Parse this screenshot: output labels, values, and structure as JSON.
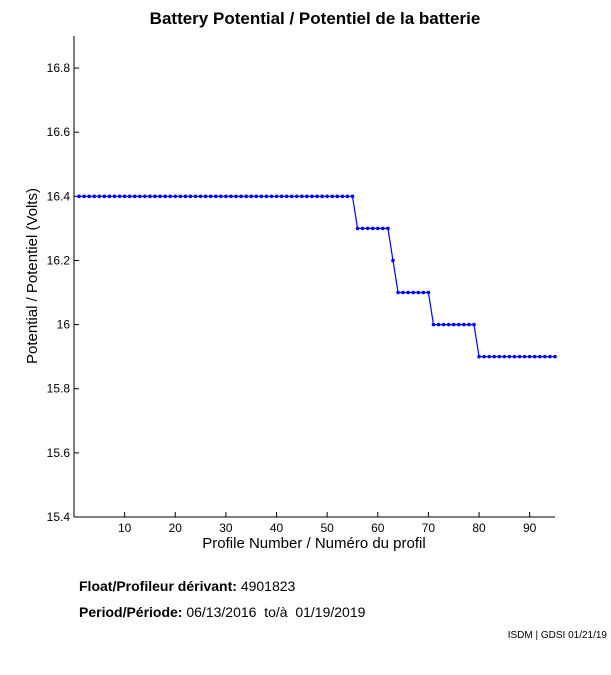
{
  "chart_data": {
    "type": "line",
    "title": "Battery Potential / Potentiel de la batterie",
    "xlabel": "Profile Number / Numéro du profil",
    "ylabel": "Potential / Potentiel (Volts)",
    "xlim": [
      0,
      95
    ],
    "ylim": [
      15.4,
      16.9
    ],
    "xticks": [
      10,
      20,
      30,
      40,
      50,
      60,
      70,
      80,
      90
    ],
    "yticks": [
      15.4,
      15.6,
      15.8,
      16,
      16.2,
      16.4,
      16.6,
      16.8
    ],
    "ytick_labels": [
      "15.4",
      "15.6",
      "15.8",
      "16",
      "16.2",
      "16.4",
      "16.6",
      "16.8"
    ],
    "series": [
      {
        "name": "Battery Potential",
        "color": "#0000ff",
        "x": [
          1,
          2,
          3,
          4,
          5,
          6,
          7,
          8,
          9,
          10,
          11,
          12,
          13,
          14,
          15,
          16,
          17,
          18,
          19,
          20,
          21,
          22,
          23,
          24,
          25,
          26,
          27,
          28,
          29,
          30,
          31,
          32,
          33,
          34,
          35,
          36,
          37,
          38,
          39,
          40,
          41,
          42,
          43,
          44,
          45,
          46,
          47,
          48,
          49,
          50,
          51,
          52,
          53,
          54,
          55,
          56,
          57,
          58,
          59,
          60,
          61,
          62,
          63,
          64,
          65,
          66,
          67,
          68,
          69,
          70,
          71,
          72,
          73,
          74,
          75,
          76,
          77,
          78,
          79,
          80,
          81,
          82,
          83,
          84,
          85,
          86,
          87,
          88,
          89,
          90,
          91,
          92,
          93,
          94,
          95
        ],
        "values": [
          16.4,
          16.4,
          16.4,
          16.4,
          16.4,
          16.4,
          16.4,
          16.4,
          16.4,
          16.4,
          16.4,
          16.4,
          16.4,
          16.4,
          16.4,
          16.4,
          16.4,
          16.4,
          16.4,
          16.4,
          16.4,
          16.4,
          16.4,
          16.4,
          16.4,
          16.4,
          16.4,
          16.4,
          16.4,
          16.4,
          16.4,
          16.4,
          16.4,
          16.4,
          16.4,
          16.4,
          16.4,
          16.4,
          16.4,
          16.4,
          16.4,
          16.4,
          16.4,
          16.4,
          16.4,
          16.4,
          16.4,
          16.4,
          16.4,
          16.4,
          16.4,
          16.4,
          16.4,
          16.4,
          16.4,
          16.3,
          16.3,
          16.3,
          16.3,
          16.3,
          16.3,
          16.3,
          16.2,
          16.1,
          16.1,
          16.1,
          16.1,
          16.1,
          16.1,
          16.1,
          16.0,
          16.0,
          16.0,
          16.0,
          16.0,
          16.0,
          16.0,
          16.0,
          16.0,
          15.9,
          15.9,
          15.9,
          15.9,
          15.9,
          15.9,
          15.9,
          15.9,
          15.9,
          15.9,
          15.9,
          15.9,
          15.9,
          15.9,
          15.9,
          15.9
        ]
      }
    ]
  },
  "info": {
    "float_label": "Float/Profileur dérivant:",
    "float_value": "4901823",
    "period_label": "Period/Période:",
    "period_value": "06/13/2016  to/à  01/19/2019"
  },
  "footer": "ISDM | GDSI 01/21/19"
}
